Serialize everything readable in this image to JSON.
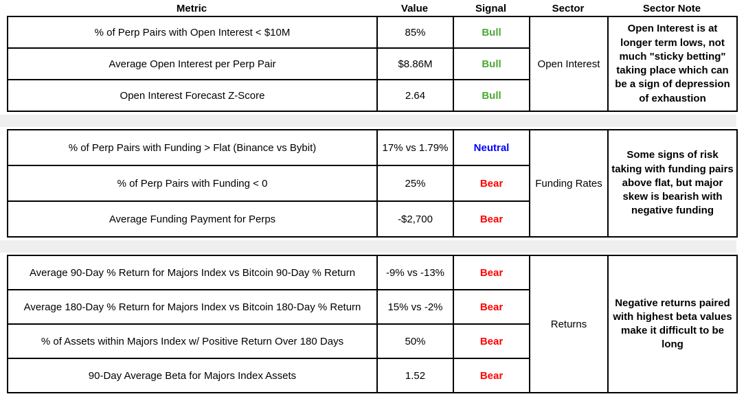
{
  "header": {
    "columns": [
      "Metric",
      "Value",
      "Signal",
      "Sector",
      "Sector Note"
    ]
  },
  "colors": {
    "signals": {
      "bull": "#4CA833",
      "neutral": "#0000FF",
      "bear": "#FF0000"
    },
    "separator_band": "#EFEFEF",
    "border": "#000000",
    "background": "#FFFFFF"
  },
  "groups": [
    {
      "sector": "Open Interest",
      "note": "Open Interest is at longer term lows, not much \"sticky betting\" taking place which can be a sign of depression of exhaustion",
      "rows": [
        {
          "metric": "% of Perp Pairs with Open Interest < $10M",
          "value": "85%",
          "signal": "Bull"
        },
        {
          "metric": "Average Open Interest per Perp Pair",
          "value": "$8.86M",
          "signal": "Bull"
        },
        {
          "metric": "Open Interest Forecast Z-Score",
          "value": "2.64",
          "signal": "Bull"
        }
      ]
    },
    {
      "sector": "Funding Rates",
      "note": "Some signs of risk taking with funding pairs above flat, but major skew is bearish with negative funding",
      "rows": [
        {
          "metric": "% of Perp Pairs with Funding > Flat (Binance vs Bybit)",
          "value": "17% vs 1.79%",
          "signal": "Neutral"
        },
        {
          "metric": "% of Perp Pairs with Funding < 0",
          "value": "25%",
          "signal": "Bear"
        },
        {
          "metric": "Average Funding Payment for Perps",
          "value": "-$2,700",
          "signal": "Bear"
        }
      ]
    },
    {
      "sector": "Returns",
      "note": "Negative returns paired with highest beta values make it difficult to be long",
      "rows": [
        {
          "metric": "Average 90-Day % Return for Majors Index vs Bitcoin 90-Day % Return",
          "value": "-9% vs -13%",
          "signal": "Bear"
        },
        {
          "metric": "Average 180-Day % Return for Majors Index vs Bitcoin 180-Day % Return",
          "value": "15% vs -2%",
          "signal": "Bear"
        },
        {
          "metric": "% of Assets within Majors Index w/ Positive Return Over 180 Days",
          "value": "50%",
          "signal": "Bear"
        },
        {
          "metric": "90-Day Average Beta for Majors Index Assets",
          "value": "1.52",
          "signal": "Bear"
        }
      ]
    }
  ],
  "chart_data": {
    "type": "table",
    "columns": [
      "Metric",
      "Value",
      "Signal",
      "Sector",
      "Sector Note"
    ],
    "rows": [
      [
        "% of Perp Pairs with Open Interest < $10M",
        "85%",
        "Bull",
        "Open Interest",
        "Open Interest is at longer term lows, not much \"sticky betting\" taking place which can be a sign of depression of exhaustion"
      ],
      [
        "Average Open Interest per Perp Pair",
        "$8.86M",
        "Bull",
        "Open Interest",
        ""
      ],
      [
        "Open Interest Forecast Z-Score",
        "2.64",
        "Bull",
        "Open Interest",
        ""
      ],
      [
        "% of Perp Pairs with Funding > Flat (Binance vs Bybit)",
        "17% vs 1.79%",
        "Neutral",
        "Funding Rates",
        "Some signs of risk taking with funding pairs above flat, but major skew is bearish with negative funding"
      ],
      [
        "% of Perp Pairs with Funding < 0",
        "25%",
        "Bear",
        "Funding Rates",
        ""
      ],
      [
        "Average Funding Payment for Perps",
        "-$2,700",
        "Bear",
        "Funding Rates",
        ""
      ],
      [
        "Average 90-Day % Return for Majors Index vs Bitcoin 90-Day % Return",
        "-9% vs -13%",
        "Bear",
        "Returns",
        "Negative returns paired with highest beta values make it difficult to be long"
      ],
      [
        "Average 180-Day % Return for Majors Index vs Bitcoin 180-Day % Return",
        "15% vs -2%",
        "Bear",
        "Returns",
        ""
      ],
      [
        "% of Assets within Majors Index w/ Positive Return Over 180 Days",
        "50%",
        "Bear",
        "Returns",
        ""
      ],
      [
        "90-Day Average Beta for Majors Index Assets",
        "1.52",
        "Bear",
        "Returns",
        ""
      ]
    ],
    "legend_position": "none",
    "grid": "table-borders"
  }
}
